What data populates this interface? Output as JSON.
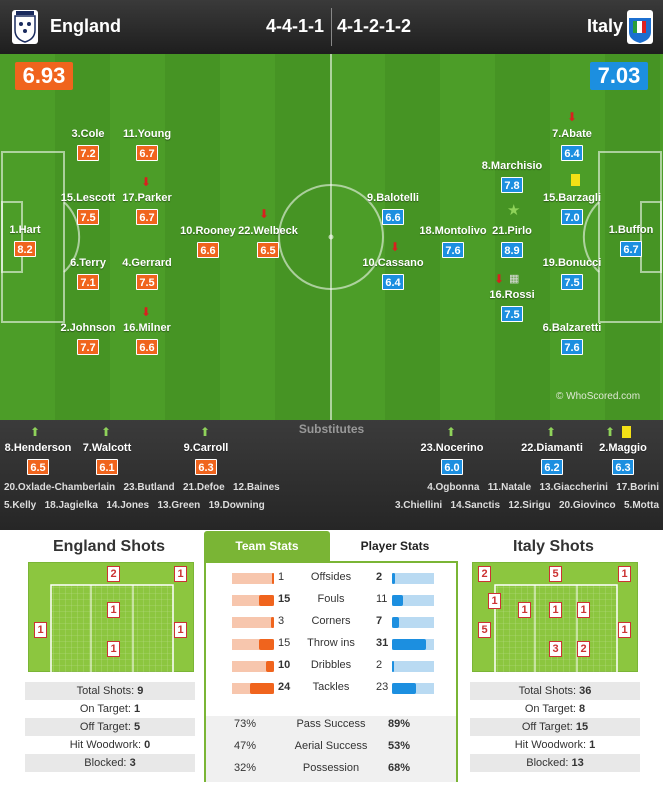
{
  "header": {
    "home_team": "England",
    "away_team": "Italy",
    "home_formation": "4-4-1-1",
    "away_formation": "4-1-2-1-2"
  },
  "ratings": {
    "home": "6.93",
    "away": "7.03"
  },
  "watermark": "© WhoScored.com",
  "players_home": [
    {
      "name": "1.Hart",
      "rating": "8.2"
    },
    {
      "name": "3.Cole",
      "rating": "7.2"
    },
    {
      "name": "15.Lescott",
      "rating": "7.5"
    },
    {
      "name": "6.Terry",
      "rating": "7.1"
    },
    {
      "name": "2.Johnson",
      "rating": "7.7"
    },
    {
      "name": "11.Young",
      "rating": "6.7"
    },
    {
      "name": "17.Parker",
      "rating": "6.7"
    },
    {
      "name": "4.Gerrard",
      "rating": "7.5"
    },
    {
      "name": "16.Milner",
      "rating": "6.6"
    },
    {
      "name": "10.Rooney",
      "rating": "6.6"
    },
    {
      "name": "22.Welbeck",
      "rating": "6.5"
    }
  ],
  "players_away": [
    {
      "name": "1.Buffon",
      "rating": "6.7"
    },
    {
      "name": "7.Abate",
      "rating": "6.4"
    },
    {
      "name": "15.Barzagli",
      "rating": "7.0"
    },
    {
      "name": "19.Bonucci",
      "rating": "7.5"
    },
    {
      "name": "6.Balzaretti",
      "rating": "7.6"
    },
    {
      "name": "8.Marchisio",
      "rating": "7.8"
    },
    {
      "name": "18.Montolivo",
      "rating": "7.6"
    },
    {
      "name": "21.Pirlo",
      "rating": "8.9"
    },
    {
      "name": "16.Rossi",
      "rating": "7.5"
    },
    {
      "name": "9.Balotelli",
      "rating": "6.6"
    },
    {
      "name": "10.Cassano",
      "rating": "6.4"
    }
  ],
  "subs": {
    "title": "Substitutes",
    "home": [
      {
        "name": "8.Henderson",
        "rating": "6.5"
      },
      {
        "name": "7.Walcott",
        "rating": "6.1"
      },
      {
        "name": "9.Carroll",
        "rating": "6.3"
      }
    ],
    "away": [
      {
        "name": "23.Nocerino",
        "rating": "6.0"
      },
      {
        "name": "22.Diamanti",
        "rating": "6.2"
      },
      {
        "name": "2.Maggio",
        "rating": "6.3"
      }
    ],
    "home_bench_row1": [
      "20.Oxlade-Chamberlain",
      "23.Butland",
      "21.Defoe",
      "12.Baines"
    ],
    "home_bench_row2": [
      "5.Kelly",
      "18.Jagielka",
      "14.Jones",
      "13.Green",
      "19.Downing"
    ],
    "away_bench_row1": [
      "4.Ogbonna",
      "11.Natale",
      "13.Giaccherini",
      "17.Borini"
    ],
    "away_bench_row2": [
      "3.Chiellini",
      "14.Sanctis",
      "12.Sirigu",
      "20.Giovinco",
      "5.Motta"
    ]
  },
  "shots": {
    "home_title": "England Shots",
    "away_title": "Italy Shots",
    "home_zone_counts": [
      "2",
      "1",
      "1",
      "1",
      "1",
      "1"
    ],
    "away_zone_counts": [
      "2",
      "5",
      "1",
      "1",
      "1",
      "1",
      "1",
      "1",
      "5",
      "3",
      "2"
    ],
    "home": [
      {
        "label": "Total Shots:",
        "value": "9"
      },
      {
        "label": "On Target:",
        "value": "1"
      },
      {
        "label": "Off Target:",
        "value": "5"
      },
      {
        "label": "Hit Woodwork:",
        "value": "0"
      },
      {
        "label": "Blocked:",
        "value": "3"
      }
    ],
    "away": [
      {
        "label": "Total Shots:",
        "value": "36"
      },
      {
        "label": "On Target:",
        "value": "8"
      },
      {
        "label": "Off Target:",
        "value": "15"
      },
      {
        "label": "Hit Woodwork:",
        "value": "1"
      },
      {
        "label": "Blocked:",
        "value": "13"
      }
    ]
  },
  "tabs": {
    "team": "Team Stats",
    "player": "Player Stats"
  },
  "team_stats": [
    {
      "label": "Offsides",
      "home": "1",
      "away": "2",
      "home_frac": 0.05,
      "away_frac": 0.08
    },
    {
      "label": "Fouls",
      "home": "15",
      "away": "11",
      "home_frac": 0.35,
      "away_frac": 0.26
    },
    {
      "label": "Corners",
      "home": "3",
      "away": "7",
      "home_frac": 0.07,
      "away_frac": 0.16
    },
    {
      "label": "Throw ins",
      "home": "15",
      "away": "31",
      "home_frac": 0.35,
      "away_frac": 0.8
    },
    {
      "label": "Dribbles",
      "home": "10",
      "away": "2",
      "home_frac": 0.2,
      "away_frac": 0.05
    },
    {
      "label": "Tackles",
      "home": "24",
      "away": "23",
      "home_frac": 0.58,
      "away_frac": 0.56
    }
  ],
  "pct_stats": [
    {
      "label": "Pass Success",
      "home": "73%",
      "away": "89%"
    },
    {
      "label": "Aerial Success",
      "home": "47%",
      "away": "53%"
    },
    {
      "label": "Possession",
      "home": "32%",
      "away": "68%"
    }
  ],
  "colors": {
    "home": "#f0641d",
    "away": "#1c8fe0",
    "pitch": "#4c9d28"
  }
}
